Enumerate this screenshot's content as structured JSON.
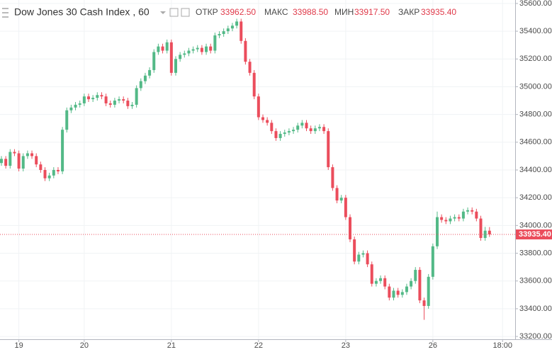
{
  "header": {
    "title": "Dow Jones 30 Cash Index , 60",
    "fields": [
      {
        "label": "ОТКР",
        "value": "33962.50"
      },
      {
        "label": "МАКС",
        "value": "33988.50"
      },
      {
        "label": "МИН",
        "value": "33917.50"
      },
      {
        "label": "ЗАКР",
        "value": "33935.40"
      }
    ]
  },
  "chart_data": {
    "type": "candlestick",
    "up_color": "#53b987",
    "down_color": "#eb4d5c",
    "grid": true,
    "categories": [
      null,
      null,
      null,
      null,
      "19",
      null,
      null,
      null,
      null,
      null,
      null,
      null,
      null,
      null,
      null,
      null,
      null,
      null,
      null,
      "20",
      null,
      null,
      null,
      null,
      null,
      null,
      null,
      null,
      null,
      null,
      null,
      null,
      null,
      null,
      null,
      null,
      null,
      null,
      null,
      "21",
      null,
      null,
      null,
      null,
      null,
      null,
      null,
      null,
      null,
      null,
      null,
      null,
      null,
      null,
      null,
      null,
      null,
      null,
      null,
      "22",
      null,
      null,
      null,
      null,
      null,
      null,
      null,
      null,
      null,
      null,
      null,
      null,
      null,
      null,
      null,
      null,
      null,
      null,
      null,
      "23",
      null,
      null,
      null,
      null,
      null,
      null,
      null,
      null,
      null,
      null,
      null,
      null,
      null,
      null,
      null,
      null,
      null,
      null,
      null,
      "26",
      null,
      null,
      null,
      null,
      null,
      null,
      null,
      null,
      null,
      null,
      null,
      null,
      null,
      null,
      null,
      "18:00"
    ],
    "open": [
      34450,
      34480,
      34430,
      34530,
      34520,
      34410,
      34500,
      34520,
      34500,
      34440,
      34400,
      34340,
      34360,
      34400,
      34390,
      34690,
      34830,
      34850,
      34870,
      34880,
      34930,
      34910,
      34920,
      34940,
      34930,
      34880,
      34870,
      34900,
      34910,
      34900,
      34860,
      34870,
      34990,
      35040,
      35080,
      35120,
      35250,
      35290,
      35260,
      35320,
      35100,
      35200,
      35230,
      35240,
      35260,
      35270,
      35280,
      35250,
      35290,
      35260,
      35370,
      35380,
      35400,
      35420,
      35440,
      35470,
      35330,
      35180,
      35100,
      34930,
      34780,
      34760,
      34740,
      34680,
      34630,
      34660,
      34670,
      34680,
      34690,
      34720,
      34740,
      34700,
      34680,
      34700,
      34710,
      34680,
      34420,
      34270,
      34180,
      34200,
      34060,
      33900,
      33740,
      33790,
      33800,
      33720,
      33580,
      33600,
      33620,
      33560,
      33480,
      33530,
      33500,
      33520,
      33560,
      33600,
      33680,
      33460,
      33420,
      33630,
      33850,
      34060,
      34040,
      34030,
      34050,
      34060,
      34050,
      34100,
      34110,
      34100,
      34050,
      33910,
      33962.5,
      null,
      null,
      null
    ],
    "high": [
      34500,
      34500,
      34550,
      34550,
      34540,
      34520,
      34540,
      34540,
      34520,
      34460,
      34420,
      34380,
      34420,
      34420,
      34710,
      34850,
      34870,
      34890,
      34900,
      34950,
      34950,
      34940,
      34960,
      34960,
      34950,
      34900,
      34920,
      34930,
      34930,
      34920,
      34890,
      35010,
      35060,
      35100,
      35140,
      35270,
      35310,
      35310,
      35340,
      35340,
      35220,
      35250,
      35260,
      35280,
      35290,
      35300,
      35300,
      35310,
      35310,
      35390,
      35400,
      35420,
      35440,
      35460,
      35490,
      35490,
      35350,
      35200,
      35120,
      34950,
      34800,
      34780,
      34760,
      34700,
      34680,
      34690,
      34700,
      34710,
      34740,
      34760,
      34760,
      34720,
      34720,
      34730,
      34730,
      34700,
      34440,
      34290,
      34220,
      34220,
      34080,
      33920,
      33810,
      33820,
      33820,
      33740,
      33620,
      33640,
      33640,
      33580,
      33550,
      33550,
      33540,
      33580,
      33620,
      33700,
      33700,
      33480,
      33650,
      33870,
      34100,
      34080,
      34060,
      34070,
      34080,
      34080,
      34120,
      34130,
      34130,
      34120,
      34070,
      33990,
      33988.5,
      null,
      null,
      null
    ],
    "low": [
      34430,
      34410,
      34410,
      34500,
      34390,
      34390,
      34480,
      34480,
      34420,
      34380,
      34320,
      34320,
      34340,
      34370,
      34370,
      34670,
      34810,
      34830,
      34850,
      34860,
      34890,
      34890,
      34900,
      34910,
      34860,
      34850,
      34850,
      34880,
      34880,
      34840,
      34840,
      34850,
      34970,
      35020,
      35060,
      35100,
      35230,
      35240,
      35240,
      35080,
      35080,
      35180,
      35210,
      35220,
      35240,
      35250,
      35230,
      35230,
      35240,
      35240,
      35350,
      35360,
      35380,
      35400,
      35420,
      35310,
      35160,
      35080,
      34910,
      34760,
      34740,
      34720,
      34660,
      34610,
      34610,
      34640,
      34650,
      34660,
      34670,
      34700,
      34680,
      34660,
      34660,
      34680,
      34660,
      34400,
      34250,
      34160,
      34160,
      34040,
      33880,
      33720,
      33720,
      33770,
      33700,
      33560,
      33560,
      33580,
      33540,
      33460,
      33460,
      33480,
      33480,
      33500,
      33540,
      33580,
      33440,
      33320,
      33400,
      33610,
      33830,
      34020,
      34010,
      34010,
      34030,
      34030,
      34030,
      34080,
      34080,
      34030,
      33890,
      33890,
      33917.5,
      null,
      null,
      null
    ],
    "close": [
      34480,
      34430,
      34530,
      34520,
      34410,
      34500,
      34520,
      34500,
      34440,
      34400,
      34340,
      34360,
      34400,
      34390,
      34690,
      34830,
      34850,
      34870,
      34880,
      34930,
      34910,
      34920,
      34940,
      34930,
      34880,
      34870,
      34900,
      34910,
      34900,
      34860,
      34870,
      34990,
      35040,
      35080,
      35120,
      35250,
      35290,
      35260,
      35320,
      35100,
      35200,
      35230,
      35240,
      35260,
      35270,
      35280,
      35250,
      35290,
      35260,
      35370,
      35380,
      35400,
      35420,
      35440,
      35470,
      35330,
      35180,
      35100,
      34930,
      34780,
      34760,
      34740,
      34680,
      34630,
      34660,
      34670,
      34680,
      34690,
      34720,
      34740,
      34700,
      34680,
      34700,
      34710,
      34680,
      34420,
      34270,
      34180,
      34200,
      34060,
      33900,
      33740,
      33790,
      33800,
      33720,
      33580,
      33600,
      33620,
      33560,
      33480,
      33530,
      33500,
      33520,
      33560,
      33600,
      33680,
      33460,
      33420,
      33630,
      33850,
      34060,
      34040,
      34030,
      34050,
      34060,
      34050,
      34100,
      34110,
      34100,
      34050,
      33910,
      33962.5,
      33935.4,
      null,
      null,
      null
    ],
    "last_price": {
      "value": 33935.4,
      "label": "33935.40",
      "color": "#eb4d5c"
    },
    "ylim": [
      33180,
      35625
    ],
    "yticks": [
      {
        "value": 33200,
        "label": "33200.00"
      },
      {
        "value": 33400,
        "label": "33400.00"
      },
      {
        "value": 33600,
        "label": "33600.00"
      },
      {
        "value": 33800,
        "label": "33800.00"
      },
      {
        "value": 34000,
        "label": "34000.00"
      },
      {
        "value": 34200,
        "label": "34200.00"
      },
      {
        "value": 34400,
        "label": "34400.00"
      },
      {
        "value": 34600,
        "label": "34600.00"
      },
      {
        "value": 34800,
        "label": "34800.00"
      },
      {
        "value": 35000,
        "label": "35000.00"
      },
      {
        "value": 35200,
        "label": "35200.00"
      },
      {
        "value": 35400,
        "label": "35400.00"
      },
      {
        "value": 35600,
        "label": "35600.00"
      }
    ]
  }
}
